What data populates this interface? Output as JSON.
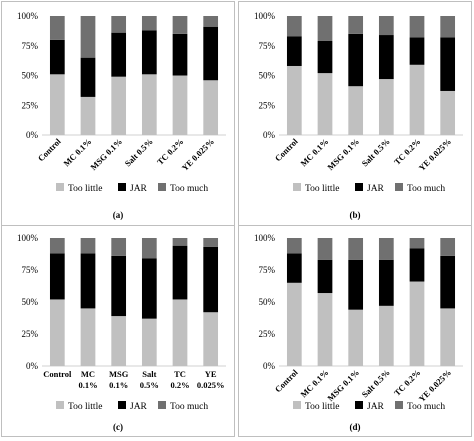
{
  "legend": [
    {
      "label": "Too little",
      "color": "#c0c0c0"
    },
    {
      "label": "JAR",
      "color": "#000000"
    },
    {
      "label": "Too much",
      "color": "#707070"
    }
  ],
  "chart_data": [
    {
      "panel": "(a)",
      "type": "bar",
      "stacked": true,
      "ylim": [
        0,
        100
      ],
      "yticks": [
        "0%",
        "25%",
        "50%",
        "75%",
        "100%"
      ],
      "grid": false,
      "legend_position": "bottom",
      "categories": [
        "Control",
        "MC 0.1%",
        "MSG 0.1%",
        "Salt 0.5%",
        "TC 0.2%",
        "YE 0.025%"
      ],
      "tick_rotated": true,
      "series": [
        {
          "name": "Too little",
          "values": [
            51,
            32,
            49,
            51,
            50,
            46
          ]
        },
        {
          "name": "JAR",
          "values": [
            29,
            33,
            37,
            37,
            35,
            45
          ]
        },
        {
          "name": "Too much",
          "values": [
            20,
            35,
            14,
            12,
            15,
            9
          ]
        }
      ]
    },
    {
      "panel": "(b)",
      "type": "bar",
      "stacked": true,
      "ylim": [
        0,
        100
      ],
      "yticks": [
        "0%",
        "25%",
        "50%",
        "75%",
        "100%"
      ],
      "grid": false,
      "legend_position": "bottom",
      "categories": [
        "Control",
        "MC 0.1%",
        "MSG 0.1%",
        "Salt 0.5%",
        "TC 0.2%",
        "YE 0.025%"
      ],
      "tick_rotated": true,
      "series": [
        {
          "name": "Too little",
          "values": [
            58,
            52,
            41,
            47,
            59,
            37
          ]
        },
        {
          "name": "JAR",
          "values": [
            25,
            27,
            44,
            37,
            23,
            45
          ]
        },
        {
          "name": "Too much",
          "values": [
            17,
            21,
            15,
            16,
            18,
            18
          ]
        }
      ]
    },
    {
      "panel": "(c)",
      "type": "bar",
      "stacked": true,
      "ylim": [
        0,
        100
      ],
      "yticks": [
        "0%",
        "25%",
        "50%",
        "75%",
        "100%"
      ],
      "grid": false,
      "legend_position": "bottom",
      "categories": [
        [
          "Control"
        ],
        [
          "MC",
          "0.1%"
        ],
        [
          "MSG",
          "0.1%"
        ],
        [
          "Salt",
          "0.5%"
        ],
        [
          "TC",
          "0.2%"
        ],
        [
          "YE",
          "0.025%"
        ]
      ],
      "tick_rotated": false,
      "series": [
        {
          "name": "Too little",
          "values": [
            52,
            45,
            39,
            37,
            52,
            42
          ]
        },
        {
          "name": "JAR",
          "values": [
            36,
            43,
            47,
            47,
            42,
            51
          ]
        },
        {
          "name": "Too much",
          "values": [
            12,
            12,
            14,
            16,
            6,
            7
          ]
        }
      ]
    },
    {
      "panel": "(d)",
      "type": "bar",
      "stacked": true,
      "ylim": [
        0,
        100
      ],
      "yticks": [
        "0%",
        "25%",
        "50%",
        "75%",
        "100%"
      ],
      "grid": false,
      "legend_position": "bottom",
      "categories": [
        "Control",
        "MC 0.1%",
        "MSG 0.1%",
        "Salt 0.5%",
        "TC 0.2%",
        "YE 0.025%"
      ],
      "tick_rotated": true,
      "series": [
        {
          "name": "Too little",
          "values": [
            65,
            57,
            44,
            47,
            66,
            45
          ]
        },
        {
          "name": "JAR",
          "values": [
            23,
            26,
            39,
            36,
            26,
            41
          ]
        },
        {
          "name": "Too much",
          "values": [
            12,
            17,
            17,
            17,
            8,
            14
          ]
        }
      ]
    }
  ]
}
